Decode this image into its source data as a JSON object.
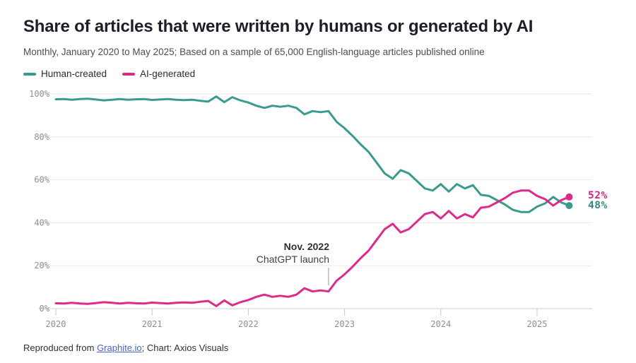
{
  "header": {
    "title": "Share of articles that were written by humans or generated by AI",
    "subtitle": "Monthly, January 2020 to May 2025; Based on a sample of 65,000 English-language articles published online"
  },
  "legend": {
    "items": [
      {
        "label": "Human-created",
        "color": "#3a9a8c"
      },
      {
        "label": "AI-generated",
        "color": "#df2a8a"
      }
    ]
  },
  "annotation": {
    "line1": "Nov. 2022",
    "line2": "ChatGPT launch",
    "target_month": "2022-11"
  },
  "end_labels": [
    {
      "id": "ai",
      "text": "52%",
      "color": "#d6267f"
    },
    {
      "id": "human",
      "text": "48%",
      "color": "#33897c"
    }
  ],
  "footer": {
    "prefix": "Reproduced from ",
    "link": "Graphite.io",
    "suffix": "; Chart: Axios Visuals"
  },
  "chart_data": {
    "type": "line",
    "title": "Share of articles that were written by humans or generated by AI",
    "x_start": "2020-01",
    "x_end": "2025-05",
    "x_tick_labels": [
      "2020",
      "2021",
      "2022",
      "2023",
      "2024",
      "2025"
    ],
    "y_tick_labels": [
      "0%",
      "20%",
      "40%",
      "60%",
      "80%",
      "100%"
    ],
    "y_ticks": [
      0,
      20,
      40,
      60,
      80,
      100
    ],
    "ylim": [
      0,
      100
    ],
    "grid": true,
    "legend_position": "top-left",
    "annotation_month_index": 34,
    "series": [
      {
        "name": "Human-created",
        "color": "#3a9a8c",
        "end_value": 48,
        "values": [
          97.5,
          97.6,
          97.3,
          97.6,
          97.8,
          97.4,
          97.0,
          97.3,
          97.6,
          97.3,
          97.5,
          97.6,
          97.2,
          97.4,
          97.6,
          97.3,
          97.1,
          97.3,
          96.8,
          96.4,
          98.8,
          96.2,
          98.5,
          97.0,
          96.0,
          94.5,
          93.5,
          94.5,
          94.0,
          94.5,
          93.5,
          90.5,
          92.0,
          91.5,
          92.0,
          87.0,
          84.0,
          80.5,
          76.5,
          73.0,
          68.0,
          63.0,
          60.5,
          64.5,
          63.0,
          59.5,
          56.0,
          55.0,
          58.0,
          54.5,
          58.0,
          56.0,
          57.5,
          53.0,
          52.5,
          50.5,
          48.5,
          46.0,
          45.0,
          45.0,
          47.5,
          49.0,
          52.0,
          49.5,
          48.0
        ]
      },
      {
        "name": "AI-generated",
        "color": "#df2a8a",
        "end_value": 52,
        "values": [
          2.5,
          2.4,
          2.7,
          2.4,
          2.2,
          2.6,
          3.0,
          2.7,
          2.4,
          2.7,
          2.5,
          2.4,
          2.8,
          2.6,
          2.4,
          2.7,
          2.9,
          2.7,
          3.2,
          3.6,
          1.2,
          3.8,
          1.5,
          3.0,
          4.0,
          5.5,
          6.5,
          5.5,
          6.0,
          5.5,
          6.5,
          9.5,
          8.0,
          8.5,
          8.0,
          13.0,
          16.0,
          19.5,
          23.5,
          27.0,
          32.0,
          37.0,
          39.5,
          35.5,
          37.0,
          40.5,
          44.0,
          45.0,
          42.0,
          45.5,
          42.0,
          44.0,
          42.5,
          47.0,
          47.5,
          49.5,
          51.5,
          54.0,
          55.0,
          55.0,
          52.5,
          51.0,
          48.0,
          50.5,
          52.0
        ]
      }
    ]
  }
}
